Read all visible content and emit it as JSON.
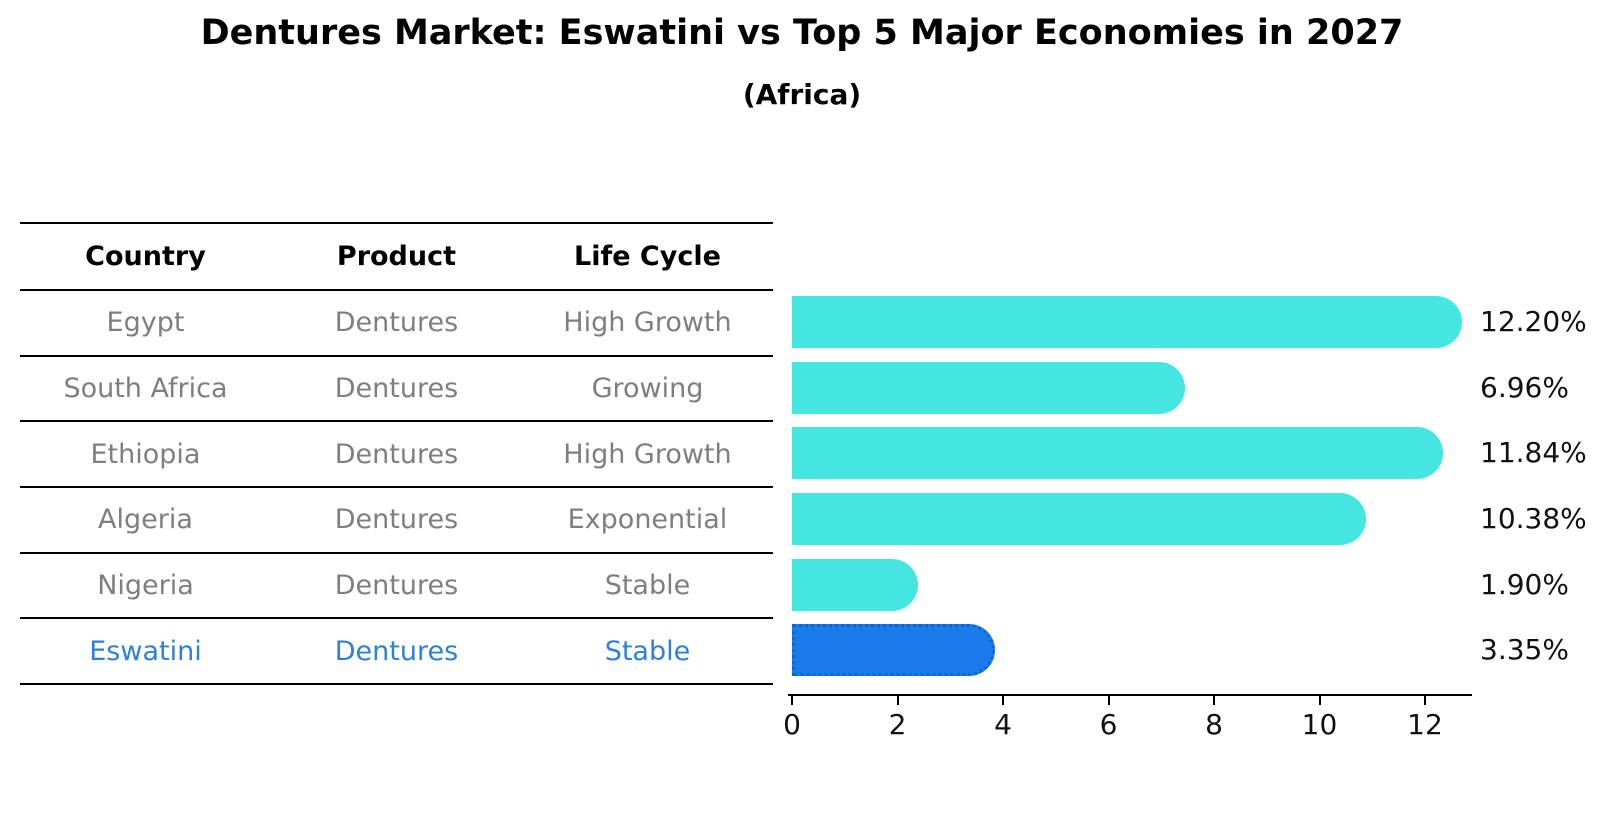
{
  "page": {
    "title": "Dentures Market: Eswatini vs Top 5 Major Economies in 2027",
    "subtitle": "(Africa)"
  },
  "table": {
    "headers": {
      "country": "Country",
      "product": "Product",
      "life_cycle": "Life Cycle"
    }
  },
  "chart_data": {
    "type": "bar",
    "orientation": "horizontal",
    "title": "Dentures Market: Eswatini vs Top 5 Major Economies in 2027",
    "subtitle": "(Africa)",
    "columns": [
      "Country",
      "Product",
      "Life Cycle"
    ],
    "categories": [
      "Egypt",
      "South Africa",
      "Ethiopia",
      "Algeria",
      "Nigeria",
      "Eswatini"
    ],
    "values": [
      12.2,
      6.96,
      11.84,
      10.38,
      1.9,
      3.35
    ],
    "rows": [
      {
        "country": "Egypt",
        "product": "Dentures",
        "life_cycle": "High Growth",
        "value": 12.2,
        "value_label": "12.20%",
        "highlight": false
      },
      {
        "country": "South Africa",
        "product": "Dentures",
        "life_cycle": "Growing",
        "value": 6.96,
        "value_label": "6.96%",
        "highlight": false
      },
      {
        "country": "Ethiopia",
        "product": "Dentures",
        "life_cycle": "High Growth",
        "value": 11.84,
        "value_label": "11.84%",
        "highlight": false
      },
      {
        "country": "Algeria",
        "product": "Dentures",
        "life_cycle": "Exponential",
        "value": 10.38,
        "value_label": "10.38%",
        "highlight": false
      },
      {
        "country": "Nigeria",
        "product": "Dentures",
        "life_cycle": "Stable",
        "value": 1.9,
        "value_label": "1.90%",
        "highlight": false
      },
      {
        "country": "Eswatini",
        "product": "Dentures",
        "life_cycle": "Stable",
        "value": 3.35,
        "value_label": "3.35%",
        "highlight": true
      }
    ],
    "xticks": [
      "0",
      "2",
      "4",
      "6",
      "8",
      "10",
      "12"
    ],
    "xlim": [
      0,
      12.8
    ],
    "grid": false,
    "legend": false,
    "colors": {
      "bar": "#45E5E2",
      "highlight_bar": "#1A7CEB",
      "highlight_border": "#0E66D4",
      "row_text": "#7f7f7f",
      "highlight_text": "#2E80D9",
      "axis": "#000000",
      "value_label": "#111111"
    }
  }
}
